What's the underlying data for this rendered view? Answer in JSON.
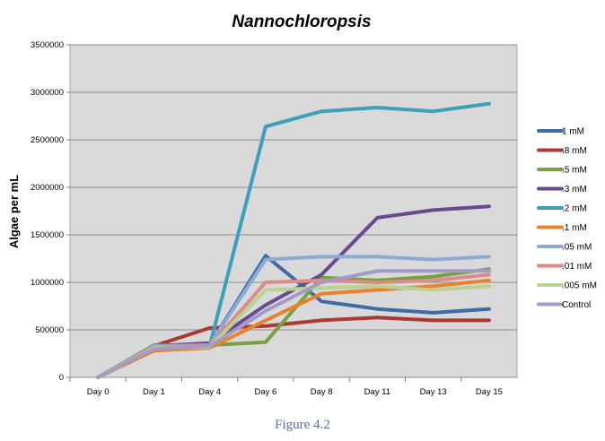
{
  "chart_data": {
    "type": "line",
    "title": "Nannochloropsis",
    "xlabel": "",
    "ylabel": "Algae per mL",
    "ylim": [
      0,
      3500000
    ],
    "yticks": [
      "0",
      "500000",
      "1000000",
      "1500000",
      "2000000",
      "2500000",
      "3000000",
      "3500000"
    ],
    "categories": [
      "Day 0",
      "Day 1",
      "Day 4",
      "Day 6",
      "Day 8",
      "Day 11",
      "Day 13",
      "Day 15"
    ],
    "grid": true,
    "legend_position": "right",
    "series": [
      {
        "name": "1 mM",
        "color": "#3F6BA8",
        "values": [
          0,
          320000,
          340000,
          1280000,
          800000,
          720000,
          680000,
          720000
        ]
      },
      {
        "name": ".8 mM",
        "color": "#A93A36",
        "values": [
          0,
          330000,
          520000,
          540000,
          600000,
          630000,
          600000,
          600000
        ]
      },
      {
        "name": ".5 mM",
        "color": "#79A040",
        "values": [
          0,
          340000,
          340000,
          370000,
          1050000,
          1020000,
          1060000,
          1140000
        ]
      },
      {
        "name": ".3 mM",
        "color": "#6A4A8E",
        "values": [
          0,
          330000,
          360000,
          760000,
          1080000,
          1680000,
          1760000,
          1800000
        ]
      },
      {
        "name": ".2 mM",
        "color": "#3BA0B8",
        "values": [
          0,
          320000,
          330000,
          2640000,
          2800000,
          2840000,
          2800000,
          2880000
        ]
      },
      {
        "name": ".1 mM",
        "color": "#E8822E",
        "values": [
          0,
          280000,
          310000,
          600000,
          880000,
          920000,
          960000,
          1020000
        ]
      },
      {
        "name": ".05 mM",
        "color": "#8DA9D6",
        "values": [
          0,
          330000,
          340000,
          1240000,
          1270000,
          1270000,
          1240000,
          1270000
        ]
      },
      {
        "name": ".01 mM",
        "color": "#DB8C89",
        "values": [
          0,
          320000,
          330000,
          1000000,
          1020000,
          1000000,
          1020000,
          1080000
        ]
      },
      {
        "name": ".005 mM",
        "color": "#B9D28E",
        "values": [
          0,
          310000,
          320000,
          920000,
          940000,
          960000,
          920000,
          960000
        ]
      },
      {
        "name": "Control",
        "color": "#A49AC8",
        "values": [
          0,
          300000,
          330000,
          700000,
          1000000,
          1120000,
          1120000,
          1120000
        ]
      }
    ]
  },
  "caption": "Figure 4.2"
}
